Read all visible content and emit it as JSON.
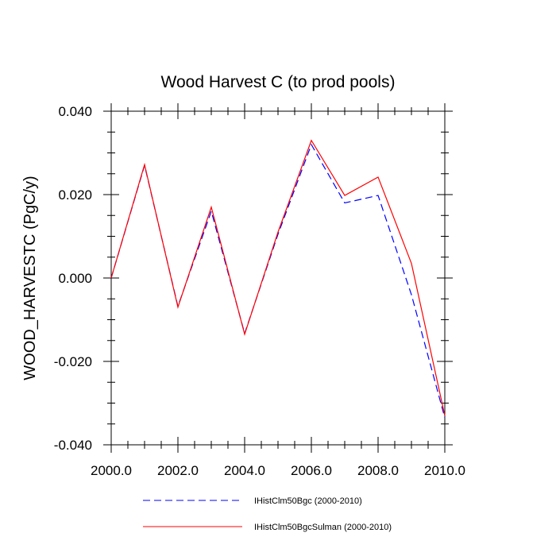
{
  "chart_data": {
    "type": "line",
    "title": "Wood Harvest C (to prod pools)",
    "xlabel": "",
    "ylabel": "WOOD_HARVESTC  (PgC/y)",
    "xlim": [
      2000,
      2010
    ],
    "ylim": [
      -0.04,
      0.04
    ],
    "x_ticks": [
      2000,
      2002,
      2004,
      2006,
      2008,
      2010
    ],
    "x_tick_labels": [
      "2000.0",
      "2002.0",
      "2004.0",
      "2006.0",
      "2008.0",
      "2010.0"
    ],
    "y_ticks": [
      -0.04,
      -0.02,
      0.0,
      0.02,
      0.04
    ],
    "y_tick_labels": [
      "-0.040",
      "-0.020",
      "0.000",
      "0.020",
      "0.040"
    ],
    "x": [
      2000,
      2001,
      2002,
      2003,
      2004,
      2005,
      2006,
      2007,
      2008,
      2009,
      2010
    ],
    "grid": false,
    "legend_position": "bottom",
    "series": [
      {
        "name": "IHistClm50Bgc (2000-2010)",
        "color": "#0000ff",
        "dash": "dashed",
        "values": [
          0.0,
          0.027,
          -0.0068,
          0.016,
          -0.0133,
          0.0105,
          0.032,
          0.018,
          0.0198,
          -0.004,
          -0.0335
        ]
      },
      {
        "name": "IHistClm50BgcSulman (2000-2010)",
        "color": "#ff0000",
        "dash": "solid",
        "values": [
          0.0,
          0.0272,
          -0.007,
          0.017,
          -0.0135,
          0.011,
          0.033,
          0.0198,
          0.0242,
          0.0035,
          -0.033
        ]
      }
    ]
  }
}
